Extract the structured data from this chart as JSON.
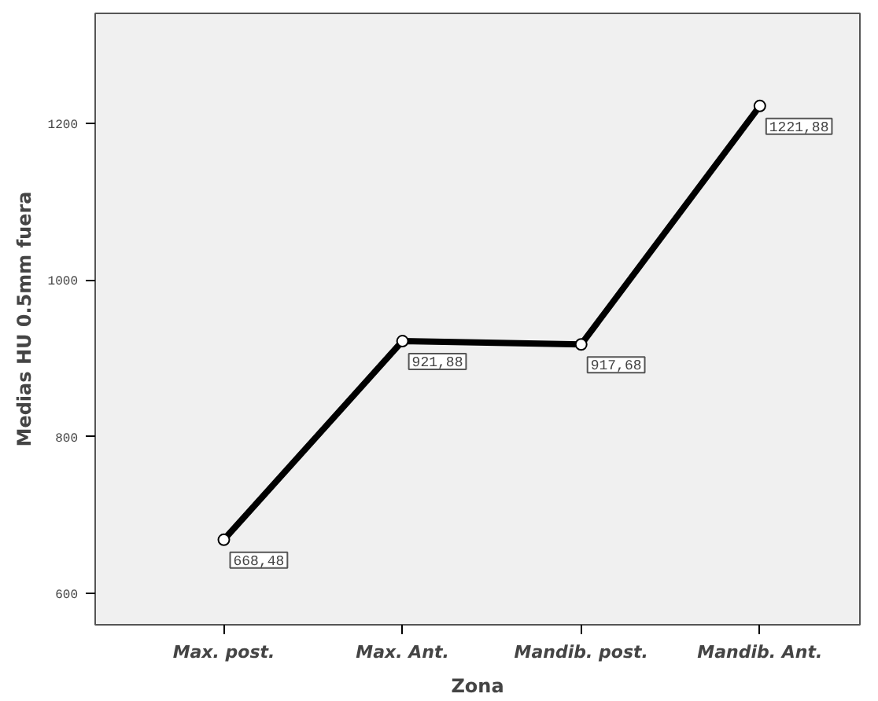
{
  "chart_data": {
    "type": "line",
    "xlabel": "Zona",
    "ylabel": "Medias HU 0.5mm fuera",
    "categories": [
      "Max. post.",
      "Max. Ant.",
      "Mandib. post.",
      "Mandib. Ant."
    ],
    "series": [
      {
        "color": "#000000",
        "values": [
          668.48,
          921.88,
          917.68,
          1221.88
        ],
        "value_labels": [
          "668,48",
          "921,88",
          "917,68",
          "1221,88"
        ]
      }
    ],
    "ylim": [
      560,
      1340
    ],
    "yticks": [
      600,
      800,
      1000,
      1200
    ],
    "grid": false,
    "marker": "circle",
    "line_style": "solid"
  }
}
